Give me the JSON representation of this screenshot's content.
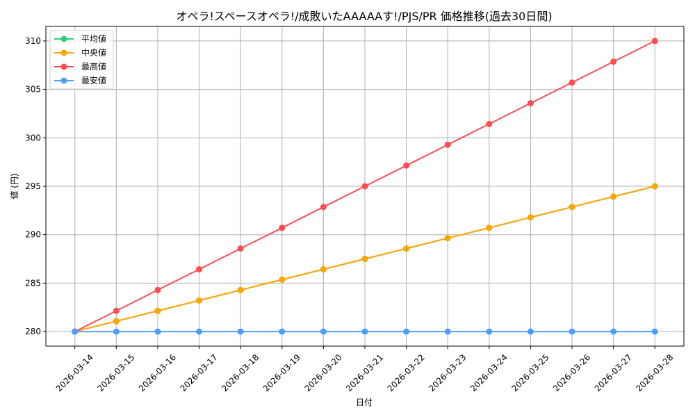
{
  "chart_data": {
    "type": "line",
    "title": "オペラ!スペースオペラ!/成敗いたAAAAAす!/PJS/PR 価格推移(過去30日間)",
    "xlabel": "日付",
    "ylabel": "値 (円)",
    "x": [
      "2026-03-14",
      "2026-03-15",
      "2026-03-16",
      "2026-03-17",
      "2026-03-18",
      "2026-03-19",
      "2026-03-20",
      "2026-03-21",
      "2026-03-22",
      "2026-03-23",
      "2026-03-24",
      "2026-03-25",
      "2026-03-26",
      "2026-03-27",
      "2026-03-28"
    ],
    "yticks": [
      280,
      285,
      290,
      295,
      300,
      305,
      310
    ],
    "ylim": [
      278.5,
      311.5
    ],
    "grid": true,
    "legend_position": "top-left",
    "series": [
      {
        "name": "平均値",
        "color": "#2ecc71",
        "values": [
          280,
          281.07,
          282.14,
          283.21,
          284.29,
          285.36,
          286.43,
          287.5,
          288.57,
          289.64,
          290.71,
          291.79,
          292.86,
          293.93,
          295
        ]
      },
      {
        "name": "中央値",
        "color": "#ffa500",
        "values": [
          280,
          281.07,
          282.14,
          283.21,
          284.29,
          285.36,
          286.43,
          287.5,
          288.57,
          289.64,
          290.71,
          291.79,
          292.86,
          293.93,
          295
        ]
      },
      {
        "name": "最高値",
        "color": "#ff4d4d",
        "values": [
          280,
          282.14,
          284.29,
          286.43,
          288.57,
          290.71,
          292.86,
          295,
          297.14,
          299.29,
          301.43,
          303.57,
          305.71,
          307.86,
          310
        ]
      },
      {
        "name": "最安値",
        "color": "#4d9fff",
        "values": [
          280,
          280,
          280,
          280,
          280,
          280,
          280,
          280,
          280,
          280,
          280,
          280,
          280,
          280,
          280
        ]
      }
    ]
  }
}
